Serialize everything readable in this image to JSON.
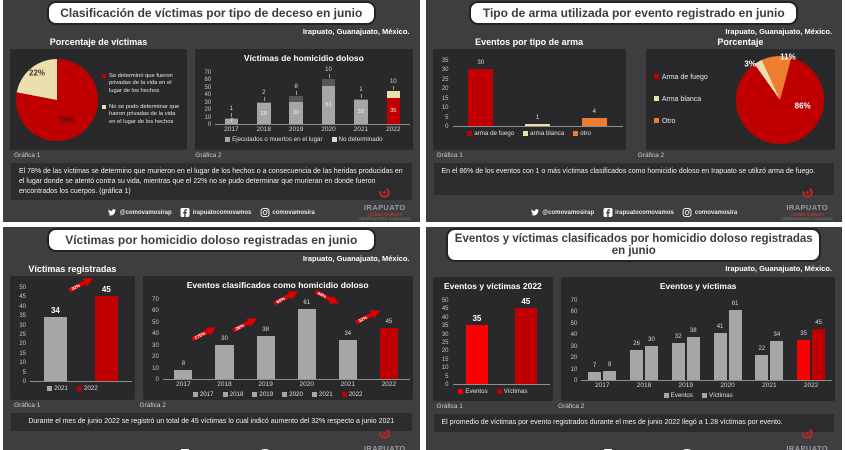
{
  "location": "Irapuato, Guanajuato, México.",
  "colors": {
    "red": "#c00000",
    "bright_red": "#fb0000",
    "cream": "#eadfad",
    "orange": "#ed7d31",
    "gray": "#a6a6a6",
    "dark_gray_segment": "#55555a",
    "panel_bg": "#3e3e40",
    "box_bg": "#29292b",
    "arrow_red": "#e10000"
  },
  "footer": {
    "twitter": "@comovamosirap",
    "facebook": "irapuatocomovamos",
    "instagram": "comovamosira",
    "logo_name": "IRAPUATO",
    "logo_tagline": "¿CÓMO VAMOS?",
    "logo_sub": "OBSERVATORIO CIUDADANO"
  },
  "panels": [
    {
      "title": "Clasificación de víctimas por tipo de deceso en junio",
      "grafica1": "Gráfica 1",
      "grafica2": "Gráfica 2",
      "description": "El 78% de las víctimas se determino que murieron en el lugar de los hechos o a consecuencia de las heridas producidas en el lugar donde se atentó contra su vida, mientras que el 22% no se pudo determinar que murieran en donde fueron encontrados los cuerpos. (gráfica 1)"
    },
    {
      "title": "Tipo de arma utilizada por evento registrado en junio",
      "grafica1": "Gráfica 1",
      "grafica2": "Gráfica 2",
      "description": "En el 86% de los eventos con 1 o más víctimas clasificados como homicidio doloso en Irapuato se utilizó arma de fuego."
    },
    {
      "title": "Víctimas por homicidio doloso registradas en junio",
      "grafica1": "Gráfica 1",
      "grafica2": "Gráfica 2",
      "description": "Durante el mes de junio 2022 se registró un total de 45 víctimas lo cual indicó aumento del 32% respecto a junio 2021"
    },
    {
      "title": "Eventos y víctimas clasificados por homicidio doloso registradas en junio",
      "grafica1": "Gráfica 1",
      "grafica2": "Gráfica 2",
      "description": "El promedio de víctimas por evento registrados durante el mes de junio 2022 llegó a 1.28 víctimas por evento."
    }
  ],
  "chart_data": [
    {
      "type": "pie",
      "title": "Porcentaje de víctimas",
      "start_angle": 0,
      "slices": [
        {
          "name": "Se determinó que fueron privadas de la vida en el lugar de los hechos",
          "pct": 78,
          "color": "#c00000",
          "label": "78%",
          "label_color": "#4d1414",
          "label_pos": {
            "x": 60,
            "y": 71
          }
        },
        {
          "name": "No se pudo determinar que fueron privadas de la vida en el lugar de los hechos",
          "pct": 22,
          "color": "#eadfad",
          "label": "22%",
          "label_color": "#3a3a3a",
          "label_pos": {
            "x": 27,
            "y": 23
          }
        }
      ],
      "legend": [
        {
          "label": "Se determinó que fueron privadas de la vida en el lugar de los hechos",
          "color": "#c00000"
        },
        {
          "label": "No se pudo determinar que fueron privadas de la vida en el lugar de los hechos",
          "color": "#eadfad"
        }
      ]
    },
    {
      "type": "stacked_bar",
      "title": "Víctimas de homicidio doloso",
      "categories": [
        "2017",
        "2018",
        "2019",
        "2020",
        "2021",
        "2022"
      ],
      "series": [
        {
          "name": "Ejecutados o muertos en el lugar",
          "values": [
            7,
            28,
            30,
            51,
            33,
            35
          ],
          "colors": [
            "#a6a6a6",
            "#a6a6a6",
            "#a6a6a6",
            "#a6a6a6",
            "#a6a6a6",
            "#c00000"
          ]
        },
        {
          "name": "No determinado",
          "values": [
            1,
            2,
            8,
            10,
            1,
            10
          ],
          "colors": [
            "#55555a",
            "#55555a",
            "#55555a",
            "#55555a",
            "#55555a",
            "#eadfad"
          ]
        }
      ],
      "ymax": 70,
      "ystep": 10,
      "show_xlabels": true,
      "legend": [
        {
          "label": "Ejecutados o muertos en el lugar",
          "color": "#a6a6a6"
        },
        {
          "label": "No determinado",
          "color": "#d9d9d9"
        }
      ]
    },
    {
      "type": "bar",
      "title": "Eventos por tipo de arma",
      "categories": [
        "arma de fuego",
        "arma blanca",
        "otro"
      ],
      "values": [
        30,
        1,
        4
      ],
      "colors": [
        "#c00000",
        "#eadfad",
        "#ed7d31"
      ],
      "ymax": 35,
      "ystep": 5,
      "show_xlabels": false,
      "legend": [
        {
          "label": "arma de fuego",
          "color": "#c00000"
        },
        {
          "label": "arma blanca",
          "color": "#eadfad"
        },
        {
          "label": "otro",
          "color": "#ed7d31"
        }
      ]
    },
    {
      "type": "pie",
      "title": "Porcentaje",
      "start_angle": 15,
      "slices": [
        {
          "name": "Arma de fuego",
          "pct": 86,
          "color": "#c00000",
          "label": "86%",
          "label_color": "#ffffff",
          "label_pos": {
            "x": 72,
            "y": 57
          }
        },
        {
          "name": "Arma blanca",
          "pct": 3,
          "color": "#eadfad",
          "label": "3%",
          "label_color": "#ffffff",
          "label_pos": {
            "x": 22,
            "y": 13
          }
        },
        {
          "name": "Otro",
          "pct": 11,
          "color": "#ed7d31",
          "label": "11%",
          "label_color": "#ffffff",
          "label_pos": {
            "x": 58,
            "y": 6
          }
        }
      ],
      "legend": [
        {
          "label": "Arma de fuego",
          "color": "#c00000"
        },
        {
          "label": "Arma blanca",
          "color": "#eadfad"
        },
        {
          "label": "Otro",
          "color": "#ed7d31"
        }
      ]
    },
    {
      "type": "bar",
      "title": "Víctimas registradas",
      "categories": [
        "2021",
        "2022"
      ],
      "values": [
        34,
        45
      ],
      "colors": [
        "#a6a6a6",
        "#c00000"
      ],
      "ymax": 50,
      "ystep": 5,
      "show_xlabels": false,
      "value_bold": true,
      "arrows": [
        {
          "between": [
            0,
            1
          ],
          "label": "32%",
          "dir": "up"
        }
      ],
      "legend": [
        {
          "label": "2021",
          "color": "#a6a6a6"
        },
        {
          "label": "2022",
          "color": "#c00000"
        }
      ]
    },
    {
      "type": "bar",
      "title": "Eventos clasificados como homicidio doloso",
      "categories": [
        "2017",
        "2018",
        "2019",
        "2020",
        "2021",
        "2022"
      ],
      "values": [
        8,
        30,
        38,
        61,
        34,
        45
      ],
      "colors": [
        "#a6a6a6",
        "#a6a6a6",
        "#a6a6a6",
        "#a6a6a6",
        "#a6a6a6",
        "#c00000"
      ],
      "ymax": 70,
      "ystep": 10,
      "show_xlabels": true,
      "arrows": [
        {
          "between": [
            0,
            1
          ],
          "label": "275%",
          "dir": "up"
        },
        {
          "between": [
            1,
            2
          ],
          "label": "26%",
          "dir": "up"
        },
        {
          "between": [
            2,
            3
          ],
          "label": "60%",
          "dir": "up"
        },
        {
          "between": [
            3,
            4
          ],
          "label": "44%",
          "dir": "down"
        },
        {
          "between": [
            4,
            5
          ],
          "label": "32%",
          "dir": "up"
        }
      ],
      "legend": [
        {
          "label": "2017",
          "color": "#a6a6a6"
        },
        {
          "label": "2018",
          "color": "#a6a6a6"
        },
        {
          "label": "2019",
          "color": "#a6a6a6"
        },
        {
          "label": "2020",
          "color": "#a6a6a6"
        },
        {
          "label": "2021",
          "color": "#a6a6a6"
        },
        {
          "label": "2022",
          "color": "#c00000"
        }
      ]
    },
    {
      "type": "bar",
      "title": "Eventos y víctimas 2022",
      "categories": [
        "Eventos",
        "Víctimas"
      ],
      "values": [
        35,
        45
      ],
      "colors": [
        "#fb0000",
        "#c00000"
      ],
      "ymax": 50,
      "ystep": 5,
      "show_xlabels": false,
      "value_bold": true,
      "legend": [
        {
          "label": "Eventos",
          "color": "#fb0000"
        },
        {
          "label": "Víctimas",
          "color": "#c00000"
        }
      ]
    },
    {
      "type": "grouped_bar",
      "title": "Eventos y víctimas",
      "categories": [
        "2017",
        "2018",
        "2019",
        "2020",
        "2021",
        "2022"
      ],
      "series": [
        {
          "name": "Eventos",
          "values": [
            7,
            26,
            32,
            41,
            22,
            35
          ],
          "colors": [
            "#a6a6a6",
            "#a6a6a6",
            "#a6a6a6",
            "#a6a6a6",
            "#a6a6a6",
            "#fb0000"
          ]
        },
        {
          "name": "Víctimas",
          "values": [
            8,
            30,
            38,
            61,
            34,
            45
          ],
          "colors": [
            "#a6a6a6",
            "#a6a6a6",
            "#a6a6a6",
            "#a6a6a6",
            "#a6a6a6",
            "#c00000"
          ]
        }
      ],
      "ymax": 70,
      "ystep": 10,
      "show_xlabels": true,
      "legend": [
        {
          "label": "Eventos",
          "color": "#a6a6a6"
        },
        {
          "label": "Víctimas",
          "color": "#a6a6a6"
        }
      ]
    }
  ]
}
